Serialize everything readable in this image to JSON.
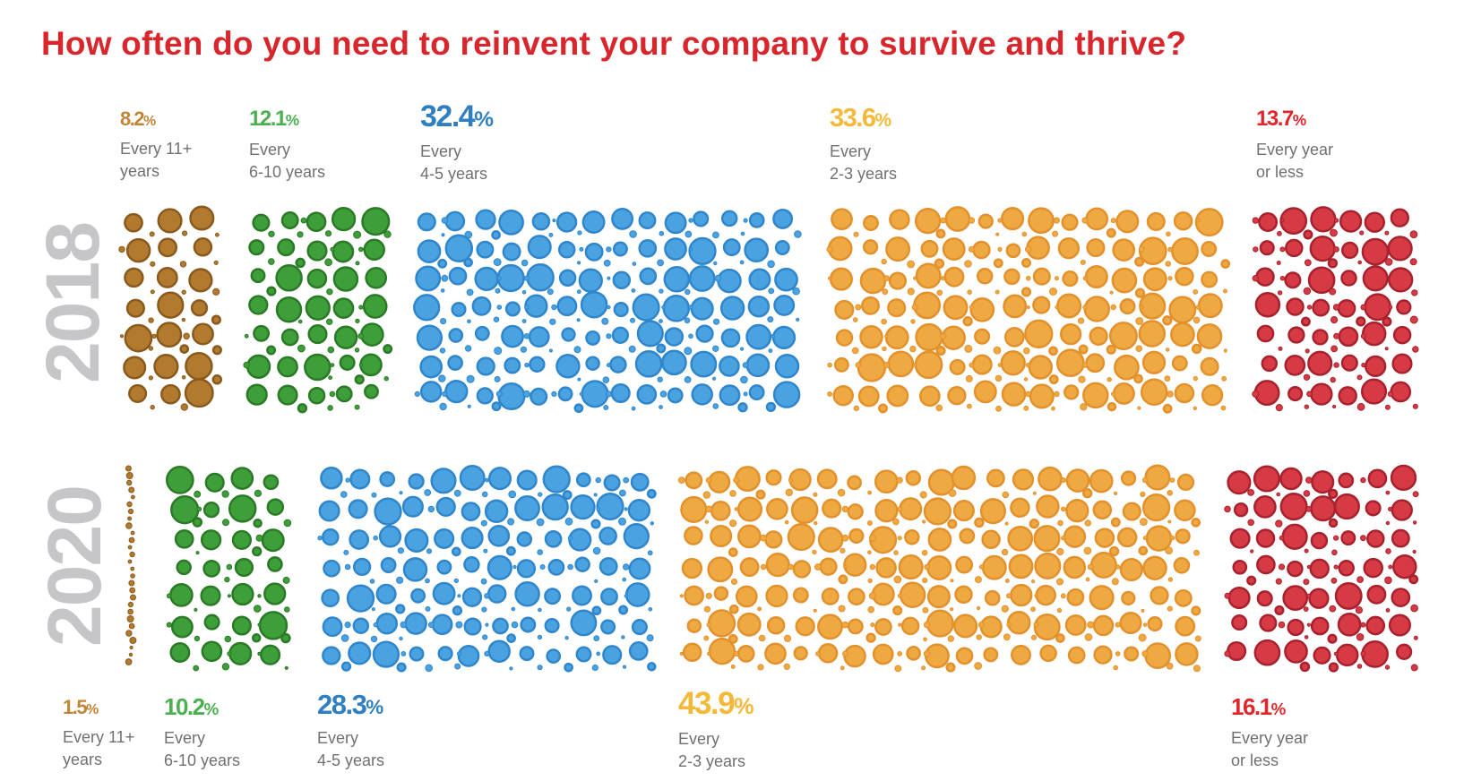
{
  "title": "How often do you need to reinvent your company to survive and thrive?",
  "chart_data": {
    "type": "bubble-area",
    "title": "How often do you need to reinvent your company to survive and thrive?",
    "categories": [
      "Every 11+ years",
      "Every 6-10 years",
      "Every 4-5 years",
      "Every 2-3 years",
      "Every year or less"
    ],
    "colors": [
      "#b27a2e",
      "#3e9f3a",
      "#4aa3e0",
      "#efa942",
      "#d63a45"
    ],
    "series": [
      {
        "name": "2018",
        "values": [
          8.2,
          12.1,
          32.4,
          33.6,
          13.7
        ],
        "labels": [
          {
            "pct": "8.2",
            "sym": "%",
            "line1": "Every 11+",
            "line2": "years"
          },
          {
            "pct": "12.1",
            "sym": "%",
            "line1": "Every",
            "line2": "6-10 years"
          },
          {
            "pct": "32.4",
            "sym": "%",
            "line1": "Every",
            "line2": "4-5 years"
          },
          {
            "pct": "33.6",
            "sym": "%",
            "line1": "Every",
            "line2": "2-3 years"
          },
          {
            "pct": "13.7",
            "sym": "%",
            "line1": "Every year",
            "line2": "or less"
          }
        ]
      },
      {
        "name": "2020",
        "values": [
          1.5,
          10.2,
          28.3,
          43.9,
          16.1
        ],
        "labels": [
          {
            "pct": "1.5",
            "sym": "%",
            "line1": "Every 11+",
            "line2": "years"
          },
          {
            "pct": "10.2",
            "sym": "%",
            "line1": "Every",
            "line2": "6-10 years"
          },
          {
            "pct": "28.3",
            "sym": "%",
            "line1": "Every",
            "line2": "4-5 years"
          },
          {
            "pct": "43.9",
            "sym": "%",
            "line1": "Every",
            "line2": "2-3 years"
          },
          {
            "pct": "16.1",
            "sym": "%",
            "line1": "Every year",
            "line2": "or less"
          }
        ]
      }
    ],
    "label_colors": [
      "#c08638",
      "#4caf50",
      "#2f7fc1",
      "#f5b93a",
      "#e0262c"
    ]
  }
}
